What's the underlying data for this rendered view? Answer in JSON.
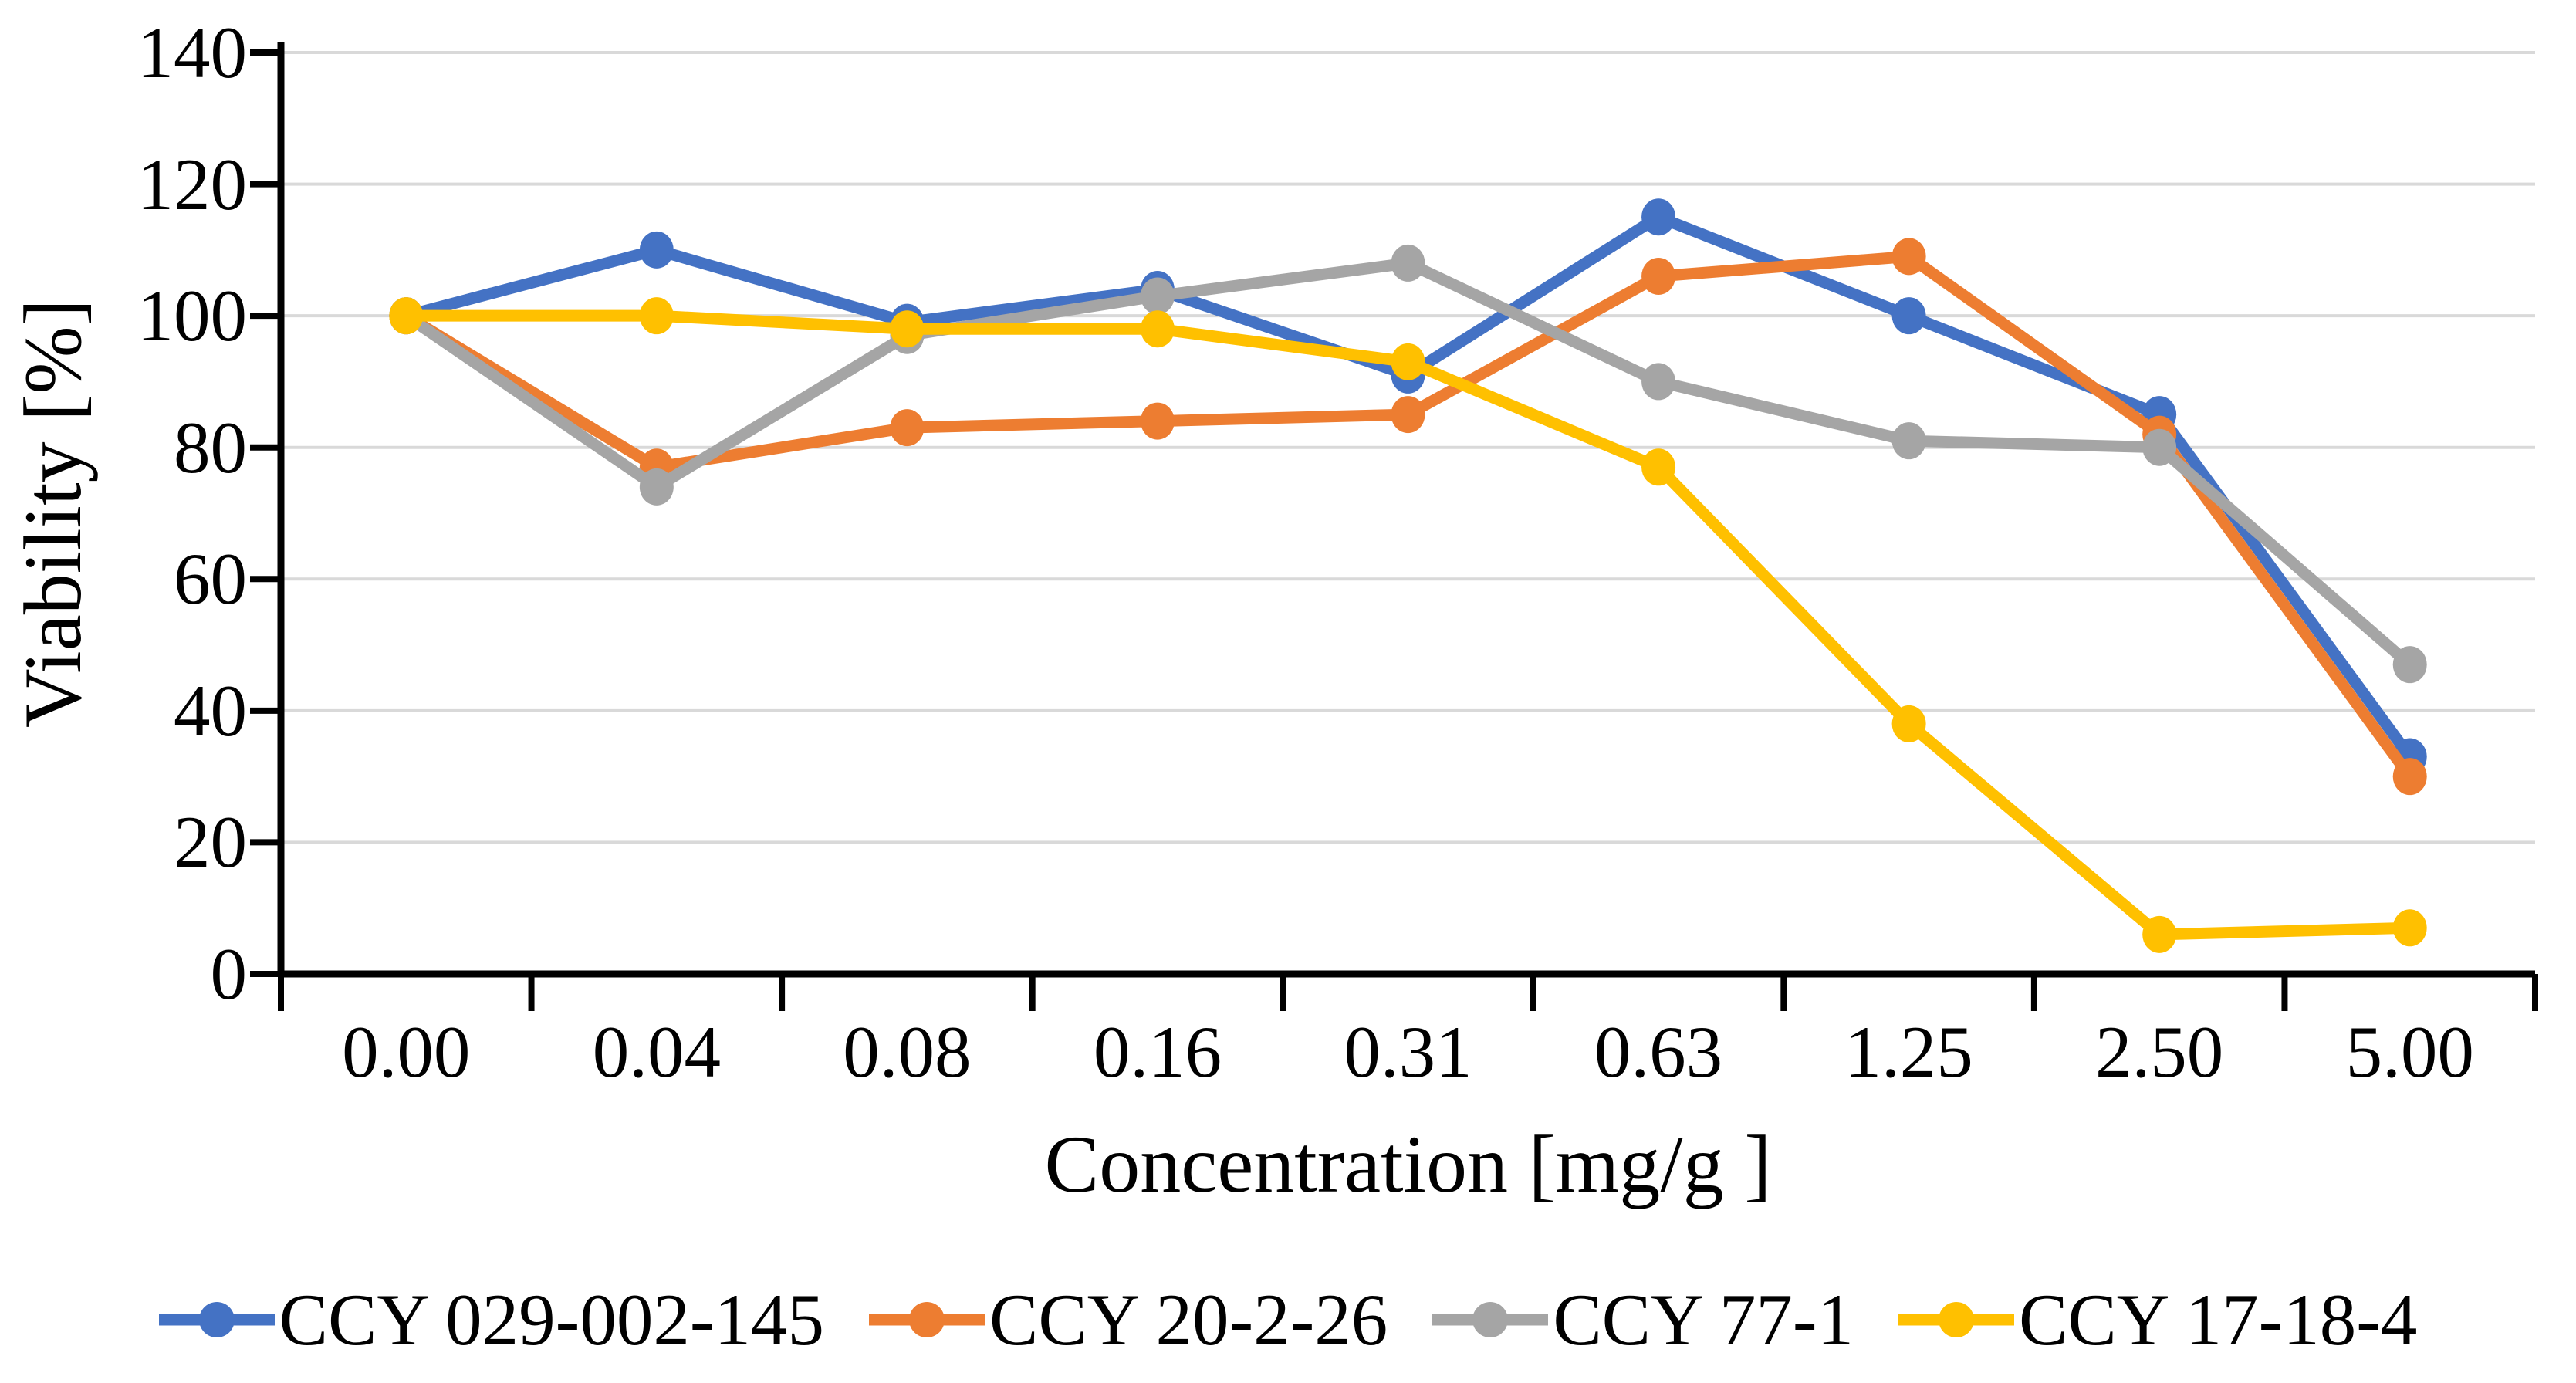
{
  "chart_data": {
    "type": "line",
    "title": "",
    "xlabel": "Concentration [mg/g ]",
    "ylabel": "Viability [%]",
    "categories": [
      "0.00",
      "0.04",
      "0.08",
      "0.16",
      "0.31",
      "0.63",
      "1.25",
      "2.50",
      "5.00"
    ],
    "series": [
      {
        "name": "CCY 029-002-145",
        "color": "#4472C4",
        "values": [
          100,
          110,
          99,
          104,
          91,
          115,
          100,
          85,
          33
        ]
      },
      {
        "name": "CCY 20-2-26",
        "color": "#ED7D31",
        "values": [
          100,
          77,
          83,
          84,
          85,
          106,
          109,
          82,
          30
        ]
      },
      {
        "name": "CCY 77-1",
        "color": "#A5A5A5",
        "values": [
          100,
          74,
          97,
          103,
          108,
          90,
          81,
          80,
          47
        ]
      },
      {
        "name": "CCY 17-18-4",
        "color": "#FFC000",
        "values": [
          100,
          100,
          98,
          98,
          93,
          77,
          38,
          6,
          7
        ]
      }
    ],
    "ylim": [
      0,
      140
    ],
    "yticks": [
      0,
      20,
      40,
      60,
      80,
      100,
      120,
      140
    ],
    "grid": "horizontal",
    "gridline_color": "#D9D9D9",
    "axis_color": "#000000",
    "legend_position": "bottom"
  }
}
